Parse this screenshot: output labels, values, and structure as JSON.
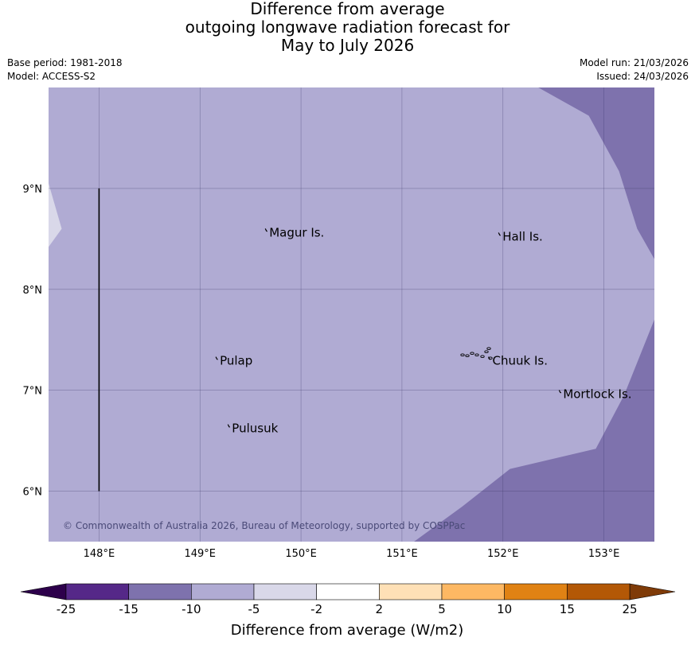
{
  "title": {
    "line1": "Difference from average",
    "line2": "outgoing longwave radiation forecast for",
    "line3": "May to July 2026"
  },
  "meta": {
    "base_period": "Base period: 1981-2018",
    "model": "Model: ACCESS-S2",
    "model_run": "Model run: 21/03/2026",
    "issued": "Issued: 24/03/2026"
  },
  "map": {
    "lon_range": [
      147.5,
      153.5
    ],
    "lat_range": [
      5.5,
      10.0
    ],
    "lon_ticks": [
      {
        "value": 148,
        "label": "148°E"
      },
      {
        "value": 149,
        "label": "149°E"
      },
      {
        "value": 150,
        "label": "150°E"
      },
      {
        "value": 151,
        "label": "151°E"
      },
      {
        "value": 152,
        "label": "152°E"
      },
      {
        "value": 153,
        "label": "153°E"
      }
    ],
    "lat_ticks": [
      {
        "value": 9,
        "label": "9°N"
      },
      {
        "value": 8,
        "label": "8°N"
      },
      {
        "value": 7,
        "label": "7°N"
      },
      {
        "value": 6,
        "label": "6°N"
      }
    ],
    "places": [
      {
        "name": "Magur Is.",
        "lon": 149.67,
        "lat": 8.57
      },
      {
        "name": "Hall Is.",
        "lon": 151.98,
        "lat": 8.53
      },
      {
        "name": "Pulap",
        "lon": 149.18,
        "lat": 7.3
      },
      {
        "name": "Chuuk Is.",
        "lon": 151.88,
        "lat": 7.3
      },
      {
        "name": "Mortlock Is.",
        "lon": 152.58,
        "lat": 6.97
      },
      {
        "name": "Pulusuk",
        "lon": 149.3,
        "lat": 6.63
      }
    ],
    "boundary_line": {
      "lon": 148.0,
      "lat_from": 6.0,
      "lat_to": 9.0
    },
    "copyright": "© Commonwealth of Australia 2026, Bureau of Meteorology, supported by COSPPac",
    "base_color": "#b0abd3",
    "regions": [
      {
        "category": "-15 to -10",
        "color": "#7e72ad",
        "polygon": [
          [
            152.9,
            10.0
          ],
          [
            153.5,
            10.0
          ],
          [
            153.5,
            8.3
          ],
          [
            153.33,
            8.6
          ],
          [
            153.15,
            9.17
          ],
          [
            152.85,
            9.72
          ],
          [
            152.35,
            10.0
          ]
        ]
      },
      {
        "category": "-15 to -10",
        "color": "#7e72ad",
        "polygon": [
          [
            153.5,
            7.7
          ],
          [
            153.5,
            5.5
          ],
          [
            151.12,
            5.5
          ],
          [
            151.6,
            5.85
          ],
          [
            152.07,
            6.22
          ],
          [
            152.92,
            6.42
          ],
          [
            153.2,
            6.95
          ]
        ]
      },
      {
        "category": "-5 to -2",
        "color": "#d9d8e9",
        "polygon": [
          [
            147.5,
            9.05
          ],
          [
            147.63,
            8.6
          ],
          [
            147.5,
            8.42
          ]
        ]
      }
    ]
  },
  "colorbar": {
    "title": "Difference from average (W/m2)",
    "boundaries": [
      "-25",
      "-15",
      "-10",
      "-5",
      "-2",
      "2",
      "5",
      "10",
      "15",
      "25"
    ],
    "colors": [
      "#552888",
      "#7e72ad",
      "#b0abd3",
      "#d9d8e9",
      "#ffffff",
      "#fee0b6",
      "#fdb863",
      "#e08214",
      "#b35806"
    ],
    "extend_low_color": "#2d004b",
    "extend_high_color": "#7f3b08"
  }
}
